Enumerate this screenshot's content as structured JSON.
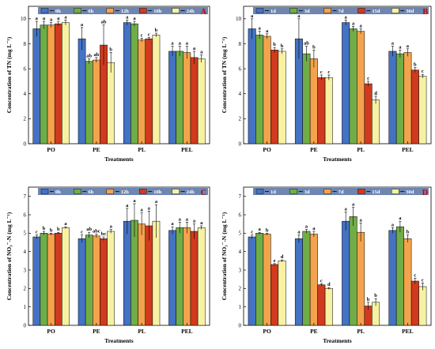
{
  "colors": {
    "legend_bg": "#6e86b0",
    "panel_letter": "#c00000"
  },
  "chart_data": [
    {
      "type": "bar",
      "panel": "A",
      "categories": [
        "PO",
        "PE",
        "PL",
        "PEL"
      ],
      "xlabel": "Treatments",
      "ylabel": "Concentration of TN (mg L⁻¹)",
      "ylim": [
        0,
        11
      ],
      "yticks": [
        0,
        2,
        4,
        6,
        8,
        10
      ],
      "legend_position": "top",
      "series": [
        {
          "name": "0h",
          "color": "#4472c4",
          "values": [
            9.2,
            8.4,
            9.7,
            7.4
          ],
          "errors": [
            0.6,
            0.9,
            0.2,
            0.4
          ],
          "labels": [
            "a",
            "a",
            "a",
            "a"
          ]
        },
        {
          "name": "6h",
          "color": "#70ad47",
          "values": [
            9.5,
            6.6,
            9.6,
            7.4
          ],
          "errors": [
            0.3,
            0.2,
            0.2,
            0.4
          ],
          "labels": [
            "a",
            "ab",
            "a",
            "a"
          ]
        },
        {
          "name": "12h",
          "color": "#f4a34d",
          "values": [
            9.5,
            6.7,
            8.3,
            7.3
          ],
          "errors": [
            0.2,
            0.2,
            0.15,
            0.5
          ],
          "labels": [
            "a",
            "ab",
            "c",
            "a"
          ]
        },
        {
          "name": "18h",
          "color": "#d03a1e",
          "values": [
            9.6,
            7.9,
            8.4,
            6.9
          ],
          "errors": [
            0.2,
            1.6,
            0.1,
            0.5
          ],
          "labels": [
            "a",
            "ab",
            "c",
            "a"
          ]
        },
        {
          "name": "24h",
          "color": "#f7f2a3",
          "values": [
            9.7,
            6.5,
            8.7,
            6.8
          ],
          "errors": [
            0.2,
            0.8,
            0.15,
            0.3
          ],
          "labels": [
            "a",
            "b",
            "b",
            "a"
          ]
        }
      ]
    },
    {
      "type": "bar",
      "panel": "B",
      "categories": [
        "PO",
        "PE",
        "PL",
        "PEL"
      ],
      "xlabel": "Treatments",
      "ylabel": "Concentration of TN (mg L⁻¹)",
      "ylim": [
        0,
        11
      ],
      "yticks": [
        0,
        2,
        4,
        6,
        8,
        10
      ],
      "legend_position": "top",
      "series": [
        {
          "name": "1d",
          "color": "#4472c4",
          "values": [
            9.2,
            8.4,
            9.7,
            7.4
          ],
          "errors": [
            0.8,
            1.6,
            0.2,
            0.4
          ],
          "labels": [
            "a",
            "a",
            "a",
            "a"
          ]
        },
        {
          "name": "3d",
          "color": "#70ad47",
          "values": [
            8.7,
            7.2,
            9.2,
            7.2
          ],
          "errors": [
            0.3,
            0.6,
            0.2,
            0.3
          ],
          "labels": [
            "a",
            "ab",
            "a",
            "a"
          ]
        },
        {
          "name": "7d",
          "color": "#f4a34d",
          "values": [
            8.6,
            6.8,
            9.0,
            7.3
          ],
          "errors": [
            0.2,
            0.7,
            0.2,
            0.3
          ],
          "labels": [
            "a",
            "b",
            "a",
            "a"
          ]
        },
        {
          "name": "15d",
          "color": "#d03a1e",
          "values": [
            7.5,
            5.3,
            4.8,
            5.9
          ],
          "errors": [
            0.2,
            0.2,
            0.2,
            0.2
          ],
          "labels": [
            "b",
            "c",
            "c",
            "b"
          ]
        },
        {
          "name": "30d",
          "color": "#f7f2a3",
          "values": [
            7.4,
            5.3,
            3.5,
            5.4
          ],
          "errors": [
            0.2,
            0.2,
            0.3,
            0.15
          ],
          "labels": [
            "b",
            "c",
            "d",
            "c"
          ]
        }
      ]
    },
    {
      "type": "bar",
      "panel": "C",
      "categories": [
        "PO",
        "PE",
        "PL",
        "PEL"
      ],
      "xlabel": "Treatments",
      "ylabel": "Concentration of NO₃⁻-N (mg L⁻¹)",
      "ylim": [
        0,
        7.5
      ],
      "yticks": [
        0,
        1,
        2,
        3,
        4,
        5,
        6,
        7
      ],
      "legend_position": "top",
      "series": [
        {
          "name": "0h",
          "color": "#4472c4",
          "values": [
            4.8,
            4.7,
            5.65,
            5.15
          ],
          "errors": [
            0.1,
            0.2,
            0.7,
            0.2
          ],
          "labels": [
            "c",
            "c",
            "a",
            "a"
          ]
        },
        {
          "name": "6h",
          "color": "#70ad47",
          "values": [
            5.0,
            4.9,
            5.7,
            5.3
          ],
          "errors": [
            0.1,
            0.15,
            0.9,
            0.3
          ],
          "labels": [
            "b",
            "ab",
            "a",
            "a"
          ]
        },
        {
          "name": "12h",
          "color": "#f4a34d",
          "values": [
            4.95,
            4.85,
            5.5,
            5.3
          ],
          "errors": [
            0.05,
            0.1,
            0.6,
            0.3
          ],
          "labels": [
            "b",
            "abc",
            "a",
            "a"
          ]
        },
        {
          "name": "18h",
          "color": "#d03a1e",
          "values": [
            5.0,
            4.7,
            5.4,
            5.1
          ],
          "errors": [
            0.05,
            0.1,
            0.8,
            0.4
          ],
          "labels": [
            "b",
            "bc",
            "a",
            "a"
          ]
        },
        {
          "name": "24h",
          "color": "#f7f2a3",
          "values": [
            5.3,
            5.1,
            5.65,
            5.3
          ],
          "errors": [
            0.05,
            0.1,
            0.9,
            0.1
          ],
          "labels": [
            "a",
            "a",
            "a",
            "a"
          ]
        }
      ]
    },
    {
      "type": "bar",
      "panel": "D",
      "categories": [
        "PO",
        "PE",
        "PL",
        "PEL"
      ],
      "xlabel": "Treatments",
      "ylabel": "Concentration of NO₃⁻-N (mg L⁻¹)",
      "ylim": [
        0,
        7.5
      ],
      "yticks": [
        0,
        1,
        2,
        3,
        4,
        5,
        6,
        7
      ],
      "legend_position": "top",
      "series": [
        {
          "name": "1d",
          "color": "#4472c4",
          "values": [
            4.8,
            4.7,
            5.65,
            5.15
          ],
          "errors": [
            0.1,
            0.2,
            0.5,
            0.15
          ],
          "labels": [
            "c",
            "a",
            "a",
            "a"
          ]
        },
        {
          "name": "3d",
          "color": "#70ad47",
          "values": [
            5.0,
            5.1,
            5.9,
            5.35
          ],
          "errors": [
            0.05,
            0.1,
            0.5,
            0.3
          ],
          "labels": [
            "a",
            "a",
            "a",
            "a"
          ]
        },
        {
          "name": "7d",
          "color": "#f4a34d",
          "values": [
            4.95,
            4.95,
            5.05,
            4.7
          ],
          "errors": [
            0.05,
            0.15,
            0.5,
            0.2
          ],
          "labels": [
            "b",
            "a",
            "a",
            "b"
          ]
        },
        {
          "name": "15d",
          "color": "#d03a1e",
          "values": [
            3.3,
            2.2,
            1.05,
            2.4
          ],
          "errors": [
            0.05,
            0.05,
            0.2,
            0.15
          ],
          "labels": [
            "e",
            "c",
            "b",
            "c"
          ]
        },
        {
          "name": "30d",
          "color": "#f7f2a3",
          "values": [
            3.5,
            2.0,
            1.25,
            2.1
          ],
          "errors": [
            0.05,
            0.05,
            0.2,
            0.2
          ],
          "labels": [
            "d",
            "d",
            "b",
            "c"
          ]
        }
      ]
    }
  ]
}
